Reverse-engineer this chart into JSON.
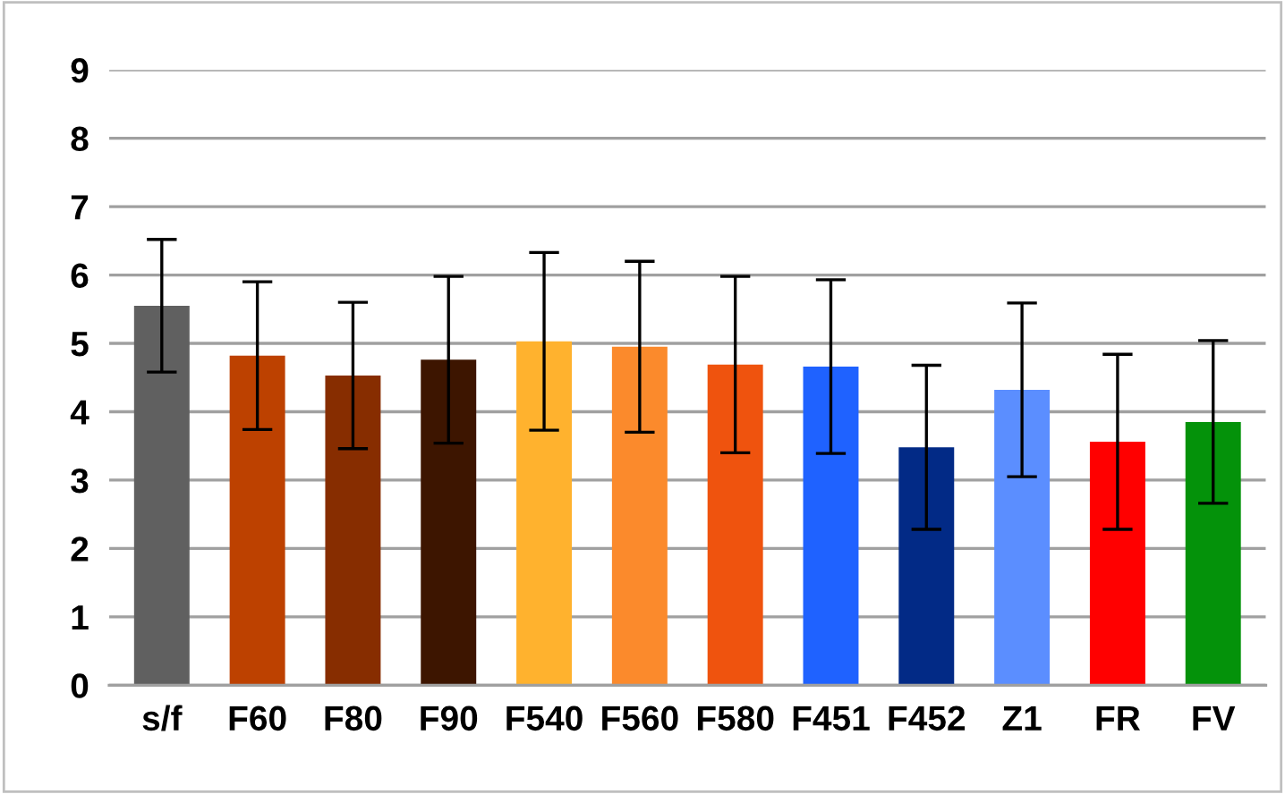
{
  "chart_data": {
    "type": "bar",
    "categories": [
      "s/f",
      "F60",
      "F80",
      "F90",
      "F540",
      "F560",
      "F580",
      "F451",
      "F452",
      "Z1",
      "FR",
      "FV"
    ],
    "values": [
      5.55,
      4.82,
      4.53,
      4.76,
      5.03,
      4.95,
      4.69,
      4.66,
      3.48,
      4.32,
      3.56,
      3.85
    ],
    "errors": [
      0.97,
      1.08,
      1.07,
      1.22,
      1.3,
      1.25,
      1.29,
      1.27,
      1.2,
      1.27,
      1.28,
      1.19
    ],
    "colors": [
      "#606060",
      "#bd4100",
      "#872d00",
      "#3d1500",
      "#ffb22e",
      "#fb8a2c",
      "#ef530e",
      "#1f62ff",
      "#022a86",
      "#5b8eff",
      "#ff0000",
      "#04920a"
    ],
    "ylim": [
      0,
      9
    ],
    "yticks": [
      0,
      1,
      2,
      3,
      4,
      5,
      6,
      7,
      8,
      9
    ],
    "grid": "y",
    "legend": false
  }
}
